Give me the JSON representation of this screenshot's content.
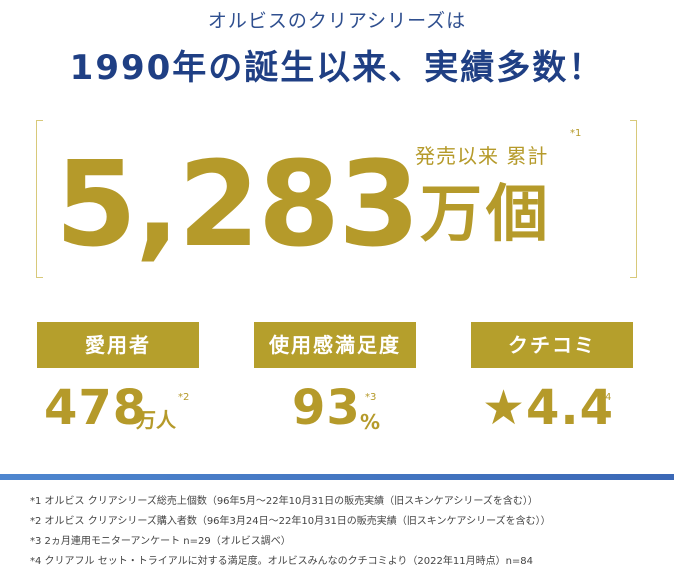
{
  "header": {
    "subtitle": "オルビスのクリアシリーズは",
    "headline": "1990年の誕生以来、実績多数！"
  },
  "highlight": {
    "caption": "発売以来 累計",
    "note_mark": "*1",
    "number": "5,283",
    "unit": "万個"
  },
  "stats": [
    {
      "label": "愛用者",
      "value": "478",
      "unit": "万人",
      "note_mark": "*2"
    },
    {
      "label": "使用感満足度",
      "value": "93",
      "unit": "%",
      "note_mark": "*3"
    },
    {
      "label": "クチコミ",
      "value": "★4.4",
      "unit": "",
      "note_mark": "*4"
    }
  ],
  "footnotes": [
    "*1 オルビス クリアシリーズ総売上個数（96年5月〜22年10月31日の販売実績（旧スキンケアシリーズを含む））",
    "*2 オルビス クリアシリーズ購入者数（96年3月24日〜22年10月31日の販売実績（旧スキンケアシリーズを含む））",
    "*3 2ヵ月連用モニターアンケート n=29（オルビス調べ）",
    "*4 クリアフル セット・トライアルに対する満足度。オルビスみんなのクチコミより（2022年11月時点）n=84"
  ],
  "colors": {
    "headline": "#1f3f84",
    "gold": "#b59a2a",
    "badge": "#b59f2c",
    "divider": "#4e86cf"
  }
}
